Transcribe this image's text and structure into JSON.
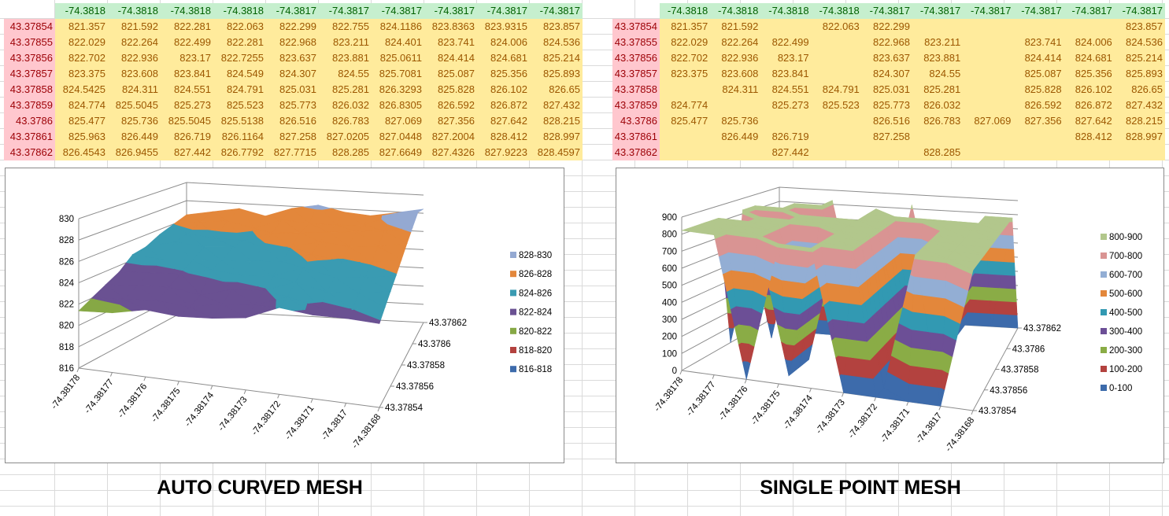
{
  "tables": [
    {
      "col_headers": [
        "-74.3818",
        "-74.3818",
        "-74.3818",
        "-74.3818",
        "-74.3817",
        "-74.3817",
        "-74.3817",
        "-74.3817",
        "-74.3817",
        "-74.3817"
      ],
      "row_headers": [
        "43.37854",
        "43.37855",
        "43.37856",
        "43.37857",
        "43.37858",
        "43.37859",
        "43.3786",
        "43.37861",
        "43.37862"
      ],
      "rows": [
        [
          "821.357",
          "821.592",
          "822.281",
          "822.063",
          "822.299",
          "822.755",
          "824.1186",
          "823.8363",
          "823.9315",
          "823.857"
        ],
        [
          "822.029",
          "822.264",
          "822.499",
          "822.281",
          "822.968",
          "823.211",
          "824.401",
          "823.741",
          "824.006",
          "824.536"
        ],
        [
          "822.702",
          "822.936",
          "823.17",
          "822.7255",
          "823.637",
          "823.881",
          "825.0611",
          "824.414",
          "824.681",
          "825.214"
        ],
        [
          "823.375",
          "823.608",
          "823.841",
          "824.549",
          "824.307",
          "824.55",
          "825.7081",
          "825.087",
          "825.356",
          "825.893"
        ],
        [
          "824.5425",
          "824.311",
          "824.551",
          "824.791",
          "825.031",
          "825.281",
          "826.3293",
          "825.828",
          "826.102",
          "826.65"
        ],
        [
          "824.774",
          "825.5045",
          "825.273",
          "825.523",
          "825.773",
          "826.032",
          "826.8305",
          "826.592",
          "826.872",
          "827.432"
        ],
        [
          "825.477",
          "825.736",
          "825.5045",
          "825.5138",
          "826.516",
          "826.783",
          "827.069",
          "827.356",
          "827.642",
          "828.215"
        ],
        [
          "825.963",
          "826.449",
          "826.719",
          "826.1164",
          "827.258",
          "827.0205",
          "827.0448",
          "827.2004",
          "828.412",
          "828.997"
        ],
        [
          "826.4543",
          "826.9455",
          "827.442",
          "826.7792",
          "827.7715",
          "828.285",
          "827.6649",
          "827.4326",
          "827.9223",
          "828.4597"
        ]
      ]
    },
    {
      "col_headers": [
        "-74.3818",
        "-74.3818",
        "-74.3818",
        "-74.3818",
        "-74.3817",
        "-74.3817",
        "-74.3817",
        "-74.3817",
        "-74.3817",
        "-74.3817"
      ],
      "row_headers": [
        "43.37854",
        "43.37855",
        "43.37856",
        "43.37857",
        "43.37858",
        "43.37859",
        "43.3786",
        "43.37861",
        "43.37862"
      ],
      "rows": [
        [
          "821.357",
          "821.592",
          "",
          "822.063",
          "822.299",
          "",
          "",
          "",
          "",
          "823.857"
        ],
        [
          "822.029",
          "822.264",
          "822.499",
          "",
          "822.968",
          "823.211",
          "",
          "823.741",
          "824.006",
          "824.536"
        ],
        [
          "822.702",
          "822.936",
          "823.17",
          "",
          "823.637",
          "823.881",
          "",
          "824.414",
          "824.681",
          "825.214"
        ],
        [
          "823.375",
          "823.608",
          "823.841",
          "",
          "824.307",
          "824.55",
          "",
          "825.087",
          "825.356",
          "825.893"
        ],
        [
          "",
          "824.311",
          "824.551",
          "824.791",
          "825.031",
          "825.281",
          "",
          "825.828",
          "826.102",
          "826.65"
        ],
        [
          "824.774",
          "",
          "825.273",
          "825.523",
          "825.773",
          "826.032",
          "",
          "826.592",
          "826.872",
          "827.432"
        ],
        [
          "825.477",
          "825.736",
          "",
          "",
          "826.516",
          "826.783",
          "827.069",
          "827.356",
          "827.642",
          "828.215"
        ],
        [
          "",
          "826.449",
          "826.719",
          "",
          "827.258",
          "",
          "",
          "",
          "828.412",
          "828.997"
        ],
        [
          "",
          "",
          "827.442",
          "",
          "",
          "828.285",
          "",
          "",
          "",
          ""
        ]
      ]
    }
  ],
  "captions": [
    "AUTO CURVED MESH",
    "SINGLE POINT MESH"
  ],
  "chart_data": [
    {
      "type": "surface",
      "source": "tables.0",
      "x_ticks": [
        "-74.38178",
        "-74.38177",
        "-74.38176",
        "-74.38175",
        "-74.38174",
        "-74.38173",
        "-74.38172",
        "-74.38171",
        "-74.3817",
        "-74.38168"
      ],
      "y_ticks": [
        "43.37854",
        "43.37856",
        "43.37858",
        "43.3786",
        "43.37862"
      ],
      "z_ticks": [
        "816",
        "818",
        "820",
        "822",
        "824",
        "826",
        "828",
        "830"
      ],
      "zlim": [
        816,
        830
      ],
      "legend_position": "right",
      "legend": [
        {
          "label": "828-830",
          "min": 828,
          "max": 830,
          "color": "#94a9d2"
        },
        {
          "label": "826-828",
          "min": 826,
          "max": 828,
          "color": "#e3873b"
        },
        {
          "label": "824-826",
          "min": 824,
          "max": 826,
          "color": "#3a9bb2"
        },
        {
          "label": "822-824",
          "min": 822,
          "max": 824,
          "color": "#6a5192"
        },
        {
          "label": "820-822",
          "min": 820,
          "max": 822,
          "color": "#86a845"
        },
        {
          "label": "818-820",
          "min": 818,
          "max": 820,
          "color": "#b3423f"
        },
        {
          "label": "816-818",
          "min": 816,
          "max": 818,
          "color": "#3d6bab"
        }
      ]
    },
    {
      "type": "surface",
      "source": "tables.1",
      "x_ticks": [
        "-74.38178",
        "-74.38177",
        "-74.38176",
        "-74.38175",
        "-74.38174",
        "-74.38173",
        "-74.38172",
        "-74.38171",
        "-74.3817",
        "-74.38168"
      ],
      "y_ticks": [
        "43.37854",
        "43.37856",
        "43.37858",
        "43.3786",
        "43.37862"
      ],
      "z_ticks": [
        "0",
        "100",
        "200",
        "300",
        "400",
        "500",
        "600",
        "700",
        "800",
        "900"
      ],
      "zlim": [
        0,
        900
      ],
      "legend_position": "right",
      "legend": [
        {
          "label": "800-900",
          "min": 800,
          "max": 900,
          "color": "#b2c78c"
        },
        {
          "label": "700-800",
          "min": 700,
          "max": 800,
          "color": "#d99493"
        },
        {
          "label": "600-700",
          "min": 600,
          "max": 700,
          "color": "#93aed4"
        },
        {
          "label": "500-600",
          "min": 500,
          "max": 600,
          "color": "#e3873b"
        },
        {
          "label": "400-500",
          "min": 400,
          "max": 500,
          "color": "#3299b2"
        },
        {
          "label": "300-400",
          "min": 300,
          "max": 400,
          "color": "#6c4f96"
        },
        {
          "label": "200-300",
          "min": 200,
          "max": 300,
          "color": "#8aac46"
        },
        {
          "label": "100-200",
          "min": 100,
          "max": 200,
          "color": "#b3423f"
        },
        {
          "label": "0-100",
          "min": 0,
          "max": 100,
          "color": "#3d6bab"
        }
      ]
    }
  ]
}
